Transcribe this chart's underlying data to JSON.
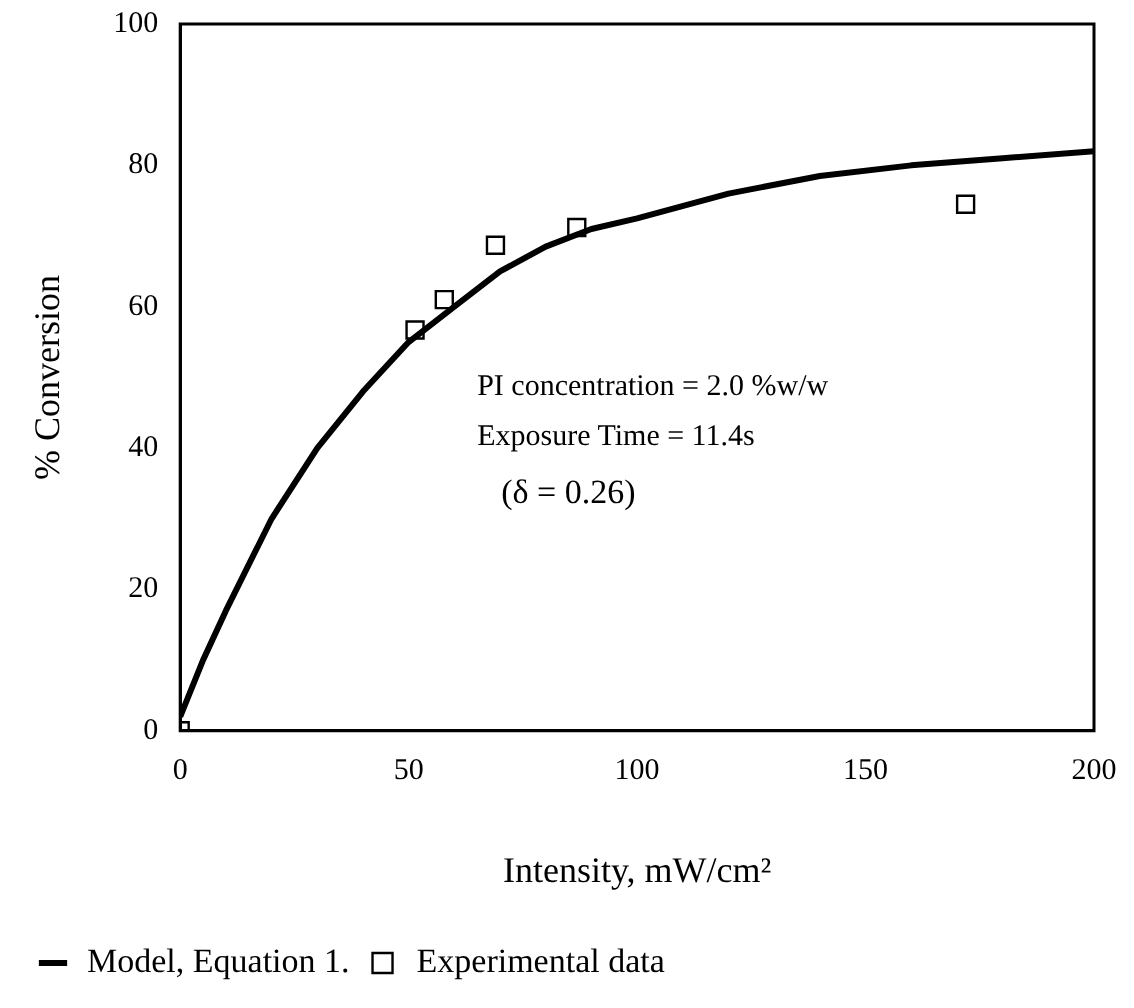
{
  "chart_data": {
    "type": "scatter",
    "xlabel": "Intensity, mW/cm²",
    "ylabel": "% Conversion",
    "xlim": [
      0,
      200
    ],
    "xticks": [
      0,
      50,
      100,
      150,
      200
    ],
    "ylim": [
      0,
      100
    ],
    "yticks": [
      0,
      20,
      40,
      60,
      80,
      100
    ],
    "grid": false,
    "legend": "bottom",
    "annotations": [
      "PI concentration = 2.0 %w/w",
      "Exposure Time = 11.4s",
      "(δ = 0.26)"
    ],
    "series": [
      {
        "name": "Model, Equation 1.",
        "type": "line",
        "color": "#000000",
        "marker": "none",
        "line_style": "solid",
        "x": [
          0,
          5,
          10,
          20,
          30,
          40,
          50,
          60,
          70,
          80,
          90,
          100,
          120,
          140,
          160,
          180,
          200
        ],
        "values": [
          2,
          10,
          17,
          30,
          40,
          48,
          55,
          60,
          65,
          68.5,
          71,
          72.5,
          76,
          78.5,
          80,
          81,
          82
        ]
      },
      {
        "name": "Experimental data",
        "type": "scatter",
        "color": "#000000",
        "marker": "square",
        "x": [
          0,
          51.4,
          57.8,
          69,
          86.8,
          171.9
        ],
        "values": [
          0,
          56.7,
          61,
          68.7,
          71.2,
          74.5
        ]
      }
    ]
  }
}
